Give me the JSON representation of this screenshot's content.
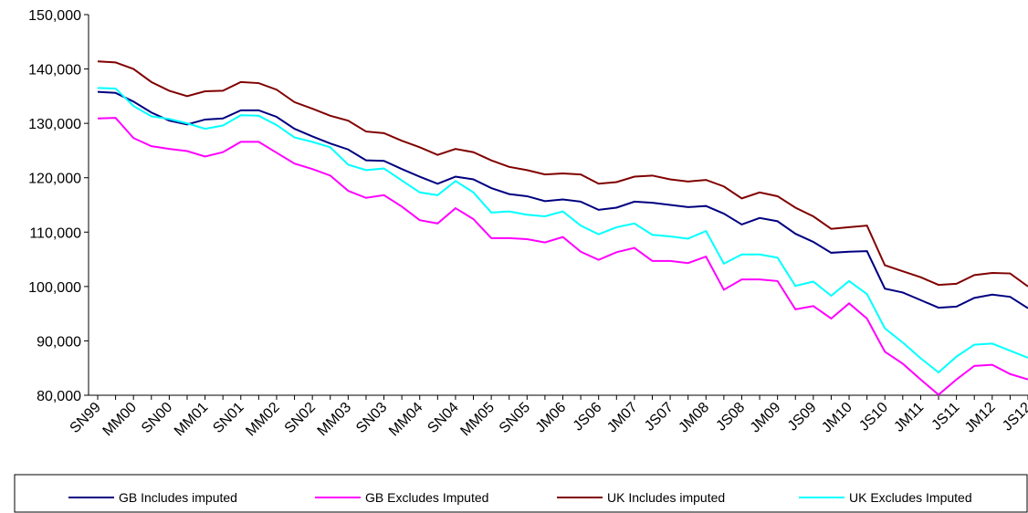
{
  "chart_data": {
    "type": "line",
    "categories": [
      "SN99",
      null,
      "MM00",
      null,
      "SN00",
      null,
      "MM01",
      null,
      "SN01",
      null,
      "MM02",
      null,
      "SN02",
      null,
      "MM03",
      null,
      "SN03",
      null,
      "MM04",
      null,
      "SN04",
      null,
      "MM05",
      null,
      "SN05",
      null,
      "JM06",
      null,
      "JS06",
      null,
      "JM07",
      null,
      "JS07",
      null,
      "JM08",
      null,
      "JS08",
      null,
      "JM09",
      null,
      "JS09",
      null,
      "JM10",
      null,
      "JS10",
      null,
      "JM11",
      null,
      "JS11",
      null,
      "JM12",
      null,
      "JS12"
    ],
    "series": [
      {
        "name": "GB Includes imputed",
        "color": "#000080",
        "values": [
          135800,
          135600,
          134000,
          132000,
          130500,
          129800,
          130700,
          130900,
          132400,
          132400,
          131200,
          129000,
          127600,
          126300,
          125200,
          123200,
          123100,
          121600,
          120200,
          118900,
          120200,
          119700,
          118100,
          117000,
          116600,
          115700,
          116000,
          115600,
          114100,
          114500,
          115600,
          115400,
          115000,
          114600,
          114800,
          113400,
          111400,
          112600,
          112000,
          109700,
          108200,
          106200,
          106400,
          106500,
          99600,
          98900,
          97500,
          96100,
          96300,
          97900,
          98500,
          98100,
          96000
        ]
      },
      {
        "name": "GB Excludes Imputed",
        "color": "#ff00ff",
        "values": [
          130900,
          131000,
          127300,
          125800,
          125300,
          124900,
          123900,
          124700,
          126600,
          126600,
          124600,
          122600,
          121600,
          120400,
          117600,
          116300,
          116800,
          114700,
          112200,
          111600,
          114400,
          112400,
          108900,
          108900,
          108700,
          108100,
          109100,
          106400,
          104900,
          106300,
          107100,
          104700,
          104700,
          104300,
          105500,
          99400,
          101300,
          101300,
          101000,
          95800,
          96400,
          94100,
          96900,
          94100,
          88000,
          85800,
          82900,
          80100,
          82900,
          85400,
          85600,
          83900,
          82900
        ]
      },
      {
        "name": "UK Includes imputed",
        "color": "#800000",
        "values": [
          141400,
          141200,
          140000,
          137600,
          136000,
          135000,
          135900,
          136000,
          137600,
          137400,
          136200,
          133900,
          132700,
          131400,
          130500,
          128500,
          128200,
          126800,
          125600,
          124200,
          125300,
          124700,
          123200,
          122000,
          121400,
          120600,
          120800,
          120600,
          118900,
          119200,
          120200,
          120400,
          119700,
          119300,
          119600,
          118400,
          116200,
          117300,
          116600,
          114500,
          112900,
          110600,
          110900,
          111200,
          103900,
          102800,
          101700,
          100300,
          100500,
          102100,
          102500,
          102400,
          100000
        ]
      },
      {
        "name": "UK Excludes Imputed",
        "color": "#00ffff",
        "values": [
          136500,
          136400,
          133200,
          131300,
          130800,
          130000,
          129000,
          129600,
          131500,
          131400,
          129700,
          127400,
          126600,
          125600,
          122400,
          121400,
          121700,
          119500,
          117300,
          116800,
          119400,
          117300,
          113600,
          113800,
          113200,
          112900,
          113800,
          111200,
          109600,
          110900,
          111600,
          109500,
          109200,
          108800,
          110200,
          104200,
          105900,
          105900,
          105300,
          100100,
          100900,
          98300,
          101000,
          98600,
          92300,
          89700,
          86800,
          84200,
          87100,
          89300,
          89500,
          88200,
          86900
        ]
      }
    ],
    "ylim": [
      80000,
      150000
    ],
    "yticks": [
      {
        "value": 80000,
        "label": "80,000"
      },
      {
        "value": 90000,
        "label": "90,000"
      },
      {
        "value": 100000,
        "label": "100,000"
      },
      {
        "value": 110000,
        "label": "110,000"
      },
      {
        "value": 120000,
        "label": "120,000"
      },
      {
        "value": 130000,
        "label": "130,000"
      },
      {
        "value": 140000,
        "label": "140,000"
      },
      {
        "value": 150000,
        "label": "150,000"
      }
    ],
    "legend": "bottom"
  }
}
